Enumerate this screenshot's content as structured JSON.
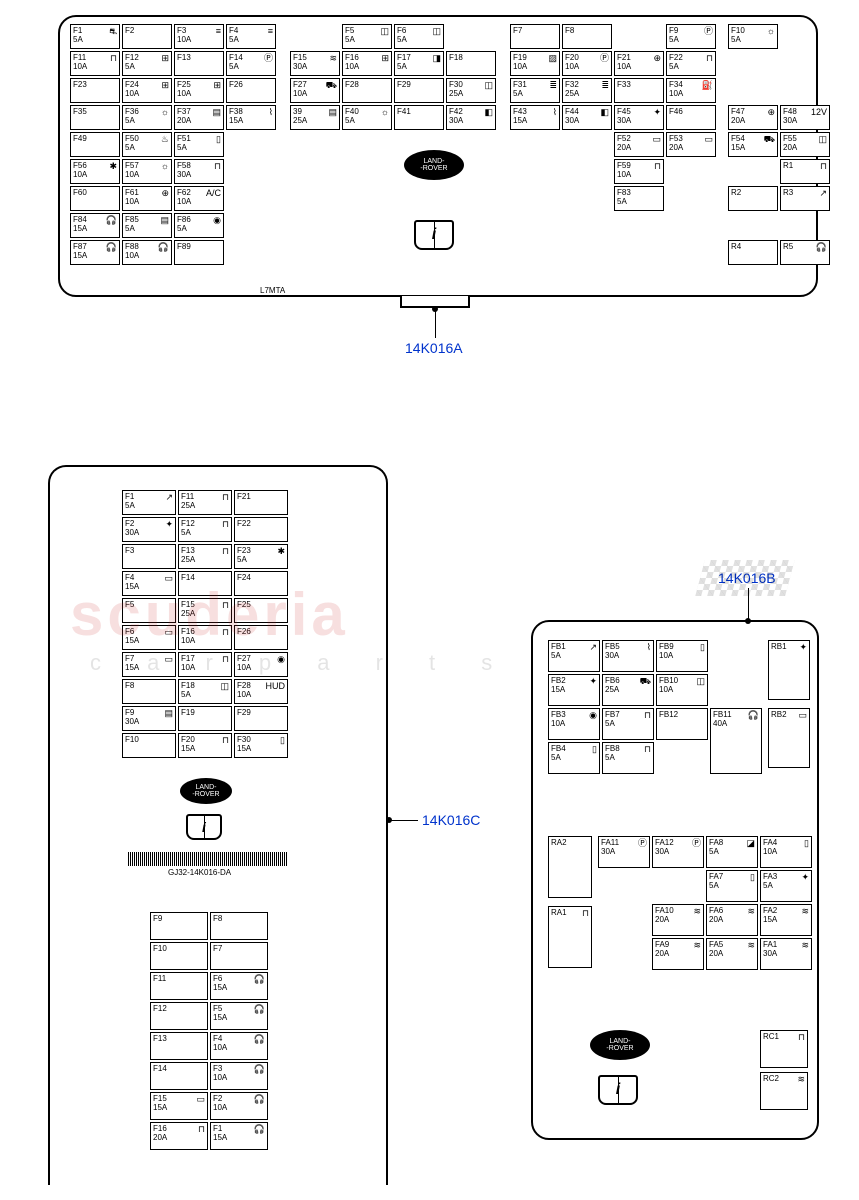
{
  "callouts": {
    "a": "14K016A",
    "b": "14K016B",
    "c": "14K016C"
  },
  "brand": {
    "line1": "LAND-",
    "line2": "-ROVER"
  },
  "watermark": {
    "main": "scuderia",
    "sub": "c  a  r  p  a  r  t  s"
  },
  "panelA": {
    "code": "L7MTA",
    "rows": [
      [
        {
          "id": "F1",
          "amp": "5A",
          "ico": "⛐"
        },
        {
          "id": "F2",
          "amp": ""
        },
        {
          "id": "F3",
          "amp": "10A",
          "ico": "≡"
        },
        {
          "id": "F4",
          "amp": "5A",
          "ico": "≡"
        },
        null,
        {
          "id": "F5",
          "amp": "5A",
          "ico": "◫"
        },
        {
          "id": "F6",
          "amp": "5A",
          "ico": "◫"
        },
        null,
        {
          "id": "F7",
          "amp": ""
        },
        {
          "id": "F8",
          "amp": ""
        },
        null,
        {
          "id": "F9",
          "amp": "5A",
          "ico": "Ⓟ"
        },
        {
          "id": "F10",
          "amp": "5A",
          "ico": "☼"
        }
      ],
      [
        {
          "id": "F11",
          "amp": "10A",
          "ico": "⊓"
        },
        {
          "id": "F12",
          "amp": "5A",
          "ico": "⊞"
        },
        {
          "id": "F13",
          "amp": ""
        },
        {
          "id": "F14",
          "amp": "5A",
          "ico": "Ⓟ"
        },
        {
          "id": "F15",
          "amp": "30A",
          "ico": "≋"
        },
        {
          "id": "F16",
          "amp": "10A",
          "ico": "⊞"
        },
        {
          "id": "F17",
          "amp": "5A",
          "ico": "◨"
        },
        {
          "id": "F18",
          "amp": ""
        },
        {
          "id": "F19",
          "amp": "10A",
          "ico": "▨"
        },
        {
          "id": "F20",
          "amp": "10A",
          "ico": "Ⓟ"
        },
        {
          "id": "F21",
          "amp": "10A",
          "ico": "⊕"
        },
        {
          "id": "F22",
          "amp": "5A",
          "ico": "⊓"
        },
        null
      ],
      [
        {
          "id": "F23",
          "amp": ""
        },
        {
          "id": "F24",
          "amp": "10A",
          "ico": "⊞"
        },
        {
          "id": "F25",
          "amp": "10A",
          "ico": "⊞"
        },
        {
          "id": "F26",
          "amp": ""
        },
        {
          "id": "F27",
          "amp": "10A",
          "ico": "⛟"
        },
        {
          "id": "F28",
          "amp": ""
        },
        {
          "id": "F29",
          "amp": ""
        },
        {
          "id": "F30",
          "amp": "25A",
          "ico": "◫"
        },
        {
          "id": "F31",
          "amp": "5A",
          "ico": "≣"
        },
        {
          "id": "F32",
          "amp": "25A",
          "ico": "≣"
        },
        {
          "id": "F33",
          "amp": ""
        },
        {
          "id": "F34",
          "amp": "10A",
          "ico": "⛽"
        },
        null
      ],
      [
        {
          "id": "F35",
          "amp": ""
        },
        {
          "id": "F36",
          "amp": "5A",
          "ico": "☼"
        },
        {
          "id": "F37",
          "amp": "20A",
          "ico": "▤"
        },
        {
          "id": "F38",
          "amp": "15A",
          "ico": "⌇"
        },
        {
          "id": "39",
          "amp": "25A",
          "ico": "▤"
        },
        {
          "id": "F40",
          "amp": "5A",
          "ico": "☼"
        },
        {
          "id": "F41",
          "amp": ""
        },
        {
          "id": "F42",
          "amp": "30A",
          "ico": "◧"
        },
        {
          "id": "F43",
          "amp": "15A",
          "ico": "⌇"
        },
        {
          "id": "F44",
          "amp": "30A",
          "ico": "◧"
        },
        {
          "id": "F45",
          "amp": "30A",
          "ico": "✦"
        },
        {
          "id": "F46",
          "amp": ""
        },
        {
          "id": "F47",
          "amp": "20A",
          "ico": "⊕"
        },
        {
          "id": "F48",
          "amp": "30A",
          "ico": "12V"
        }
      ],
      [
        {
          "id": "F49",
          "amp": ""
        },
        {
          "id": "F50",
          "amp": "5A",
          "ico": "♨"
        },
        {
          "id": "F51",
          "amp": "5A",
          "ico": "▯"
        },
        null,
        null,
        null,
        null,
        null,
        null,
        null,
        {
          "id": "F52",
          "amp": "20A",
          "ico": "▭"
        },
        {
          "id": "F53",
          "amp": "20A",
          "ico": "▭"
        },
        {
          "id": "F54",
          "amp": "15A",
          "ico": "⛟"
        },
        {
          "id": "F55",
          "amp": "20A",
          "ico": "◫"
        }
      ],
      [
        {
          "id": "F56",
          "amp": "10A",
          "ico": "✱"
        },
        {
          "id": "F57",
          "amp": "10A",
          "ico": "☼"
        },
        {
          "id": "F58",
          "amp": "30A",
          "ico": "⊓"
        },
        null,
        null,
        null,
        null,
        null,
        null,
        null,
        {
          "id": "F59",
          "amp": "10A",
          "ico": "⊓"
        },
        null,
        null,
        {
          "id": "R1",
          "amp": "",
          "ico": "⊓"
        }
      ],
      [
        {
          "id": "F60",
          "amp": ""
        },
        {
          "id": "F61",
          "amp": "10A",
          "ico": "⊕"
        },
        {
          "id": "F62",
          "amp": "10A",
          "ico": "A/C"
        },
        null,
        null,
        null,
        null,
        null,
        null,
        null,
        {
          "id": "F83",
          "amp": "5A",
          "ico": ""
        },
        null,
        {
          "id": "R2",
          "amp": ""
        },
        {
          "id": "R3",
          "amp": "",
          "ico": "↗"
        }
      ],
      [
        {
          "id": "F84",
          "amp": "15A",
          "ico": "🎧"
        },
        {
          "id": "F85",
          "amp": "5A",
          "ico": "▤"
        },
        {
          "id": "F86",
          "amp": "5A",
          "ico": "◉"
        },
        null,
        null,
        null,
        null,
        null,
        null,
        null,
        null,
        null,
        null,
        null
      ],
      [
        {
          "id": "F87",
          "amp": "15A",
          "ico": "🎧"
        },
        {
          "id": "F88",
          "amp": "10A",
          "ico": "🎧"
        },
        {
          "id": "F89",
          "amp": ""
        },
        null,
        null,
        null,
        null,
        null,
        null,
        null,
        null,
        null,
        {
          "id": "R4",
          "amp": ""
        },
        {
          "id": "R5",
          "amp": "",
          "ico": "🎧"
        }
      ]
    ]
  },
  "panelC": {
    "partNo": "GJ32-14K016-DA",
    "cols": [
      [
        {
          "id": "F1",
          "amp": "5A",
          "ico": "↗"
        },
        {
          "id": "F2",
          "amp": "30A",
          "ico": "✦"
        },
        {
          "id": "F3",
          "amp": ""
        },
        {
          "id": "F4",
          "amp": "15A",
          "ico": "▭"
        },
        {
          "id": "F5",
          "amp": ""
        },
        {
          "id": "F6",
          "amp": "15A",
          "ico": "▭"
        },
        {
          "id": "F7",
          "amp": "15A",
          "ico": "▭"
        },
        {
          "id": "F8",
          "amp": ""
        },
        {
          "id": "F9",
          "amp": "30A",
          "ico": "▤"
        },
        {
          "id": "F10",
          "amp": ""
        }
      ],
      [
        {
          "id": "F11",
          "amp": "25A",
          "ico": "⊓"
        },
        {
          "id": "F12",
          "amp": "5A",
          "ico": "⊓"
        },
        {
          "id": "F13",
          "amp": "25A",
          "ico": "⊓"
        },
        {
          "id": "F14",
          "amp": ""
        },
        {
          "id": "F15",
          "amp": "25A",
          "ico": "⊓"
        },
        {
          "id": "F16",
          "amp": "10A",
          "ico": "⊓"
        },
        {
          "id": "F17",
          "amp": "10A",
          "ico": "⊓"
        },
        {
          "id": "F18",
          "amp": "5A",
          "ico": "◫"
        },
        {
          "id": "F19",
          "amp": ""
        },
        {
          "id": "F20",
          "amp": "15A",
          "ico": "⊓"
        }
      ],
      [
        {
          "id": "F21",
          "amp": ""
        },
        {
          "id": "F22",
          "amp": ""
        },
        {
          "id": "F23",
          "amp": "5A",
          "ico": "✱"
        },
        {
          "id": "F24",
          "amp": ""
        },
        {
          "id": "F25",
          "amp": ""
        },
        {
          "id": "F26",
          "amp": ""
        },
        {
          "id": "F27",
          "amp": "10A",
          "ico": "◉"
        },
        {
          "id": "F28",
          "amp": "10A",
          "ico": "HUD"
        },
        {
          "id": "F29",
          "amp": ""
        },
        {
          "id": "F30",
          "amp": "15A",
          "ico": "▯"
        }
      ]
    ],
    "lower": [
      [
        {
          "id": "F9",
          "amp": ""
        },
        {
          "id": "F10",
          "amp": ""
        },
        {
          "id": "F11",
          "amp": ""
        },
        {
          "id": "F12",
          "amp": ""
        },
        {
          "id": "F13",
          "amp": ""
        },
        {
          "id": "F14",
          "amp": ""
        },
        {
          "id": "F15",
          "amp": "15A",
          "ico": "▭"
        },
        {
          "id": "F16",
          "amp": "20A",
          "ico": "⊓"
        }
      ],
      [
        {
          "id": "F8",
          "amp": ""
        },
        {
          "id": "F7",
          "amp": ""
        },
        {
          "id": "F6",
          "amp": "15A",
          "ico": "🎧"
        },
        {
          "id": "F5",
          "amp": "15A",
          "ico": "🎧"
        },
        {
          "id": "F4",
          "amp": "10A",
          "ico": "🎧"
        },
        {
          "id": "F3",
          "amp": "10A",
          "ico": "🎧"
        },
        {
          "id": "F2",
          "amp": "10A",
          "ico": "🎧"
        },
        {
          "id": "F1",
          "amp": "15A",
          "ico": "🎧"
        }
      ]
    ]
  },
  "panelB": {
    "fb": [
      [
        {
          "id": "FB1",
          "amp": "5A",
          "ico": "↗"
        },
        {
          "id": "FB5",
          "amp": "30A",
          "ico": "⌇"
        },
        {
          "id": "FB9",
          "amp": "10A",
          "ico": "▯"
        }
      ],
      [
        {
          "id": "FB2",
          "amp": "15A",
          "ico": "✦"
        },
        {
          "id": "FB6",
          "amp": "25A",
          "ico": "⛟"
        },
        {
          "id": "FB10",
          "amp": "10A",
          "ico": "◫"
        }
      ],
      [
        {
          "id": "FB3",
          "amp": "10A",
          "ico": "◉"
        },
        {
          "id": "FB7",
          "amp": "5A",
          "ico": "⊓"
        },
        {
          "id": "FB12",
          "amp": ""
        }
      ],
      [
        {
          "id": "FB4",
          "amp": "5A",
          "ico": "▯"
        },
        {
          "id": "FB8",
          "amp": "5A",
          "ico": "⊓"
        },
        null
      ]
    ],
    "fb_side": [
      {
        "id": "RB1",
        "amp": "",
        "ico": "✦"
      },
      {
        "id": "RB2",
        "amp": "",
        "ico": "▭"
      }
    ],
    "fb11": {
      "id": "FB11",
      "amp": "40A",
      "ico": "🎧"
    },
    "fa": [
      [
        {
          "id": "FA11",
          "amp": "30A",
          "ico": "Ⓟ"
        },
        {
          "id": "FA12",
          "amp": "30A",
          "ico": "Ⓟ"
        },
        {
          "id": "FA8",
          "amp": "5A",
          "ico": "◪"
        },
        {
          "id": "FA4",
          "amp": "10A",
          "ico": "▯"
        }
      ],
      [
        null,
        null,
        {
          "id": "FA7",
          "amp": "5A",
          "ico": "▯"
        },
        {
          "id": "FA3",
          "amp": "5A",
          "ico": "✦"
        }
      ],
      [
        null,
        {
          "id": "FA10",
          "amp": "20A",
          "ico": "≋"
        },
        {
          "id": "FA6",
          "amp": "20A",
          "ico": "≋"
        },
        {
          "id": "FA2",
          "amp": "15A",
          "ico": "≋"
        }
      ],
      [
        null,
        {
          "id": "FA9",
          "amp": "20A",
          "ico": "≋"
        },
        {
          "id": "FA5",
          "amp": "20A",
          "ico": "≋"
        },
        {
          "id": "FA1",
          "amp": "30A",
          "ico": "≋"
        }
      ]
    ],
    "ra": [
      {
        "id": "RA2",
        "amp": ""
      },
      {
        "id": "RA1",
        "amp": "",
        "ico": "⊓"
      }
    ],
    "rc": [
      {
        "id": "RC1",
        "amp": "",
        "ico": "⊓"
      },
      {
        "id": "RC2",
        "amp": "",
        "ico": "≋"
      }
    ]
  }
}
